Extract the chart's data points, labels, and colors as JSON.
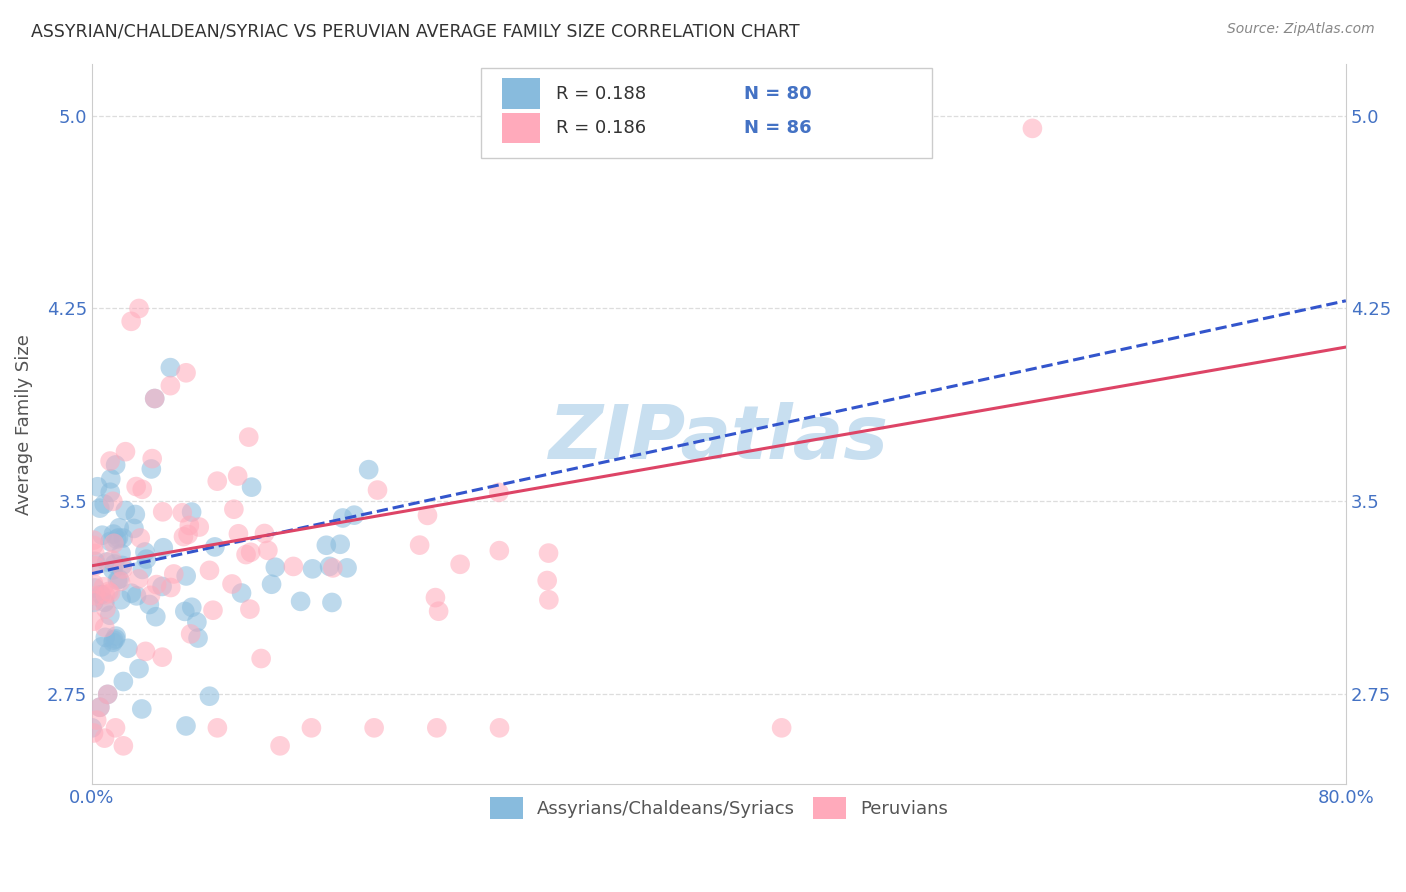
{
  "title": "ASSYRIAN/CHALDEAN/SYRIAC VS PERUVIAN AVERAGE FAMILY SIZE CORRELATION CHART",
  "source": "Source: ZipAtlas.com",
  "ylabel": "Average Family Size",
  "watermark": "ZIPatlas",
  "xlim": [
    0.0,
    0.8
  ],
  "ylim": [
    2.4,
    5.2
  ],
  "yticks": [
    2.75,
    3.5,
    4.25,
    5.0
  ],
  "xticks": [
    0.0,
    0.2,
    0.4,
    0.6,
    0.8
  ],
  "xticklabels": [
    "0.0%",
    "",
    "",
    "",
    "80.0%"
  ],
  "legend_blue_R": "R = 0.188",
  "legend_blue_N": "N = 80",
  "legend_pink_R": "R = 0.186",
  "legend_pink_N": "N = 86",
  "blue_label": "Assyrians/Chaldeans/Syriacs",
  "pink_label": "Peruvians",
  "blue_color": "#88bbdd",
  "pink_color": "#ffaabb",
  "blue_line_color": "#3355cc",
  "pink_line_color": "#dd4466",
  "title_color": "#333333",
  "axis_label_color": "#555555",
  "tick_color": "#4472c4",
  "grid_color": "#dddddd",
  "watermark_color": "#c8dff0",
  "blue_trend_x0": 0.0,
  "blue_trend_y0": 3.22,
  "blue_trend_x1": 0.8,
  "blue_trend_y1": 4.28,
  "pink_trend_x0": 0.0,
  "pink_trend_y0": 3.25,
  "pink_trend_x1": 0.8,
  "pink_trend_y1": 4.1
}
